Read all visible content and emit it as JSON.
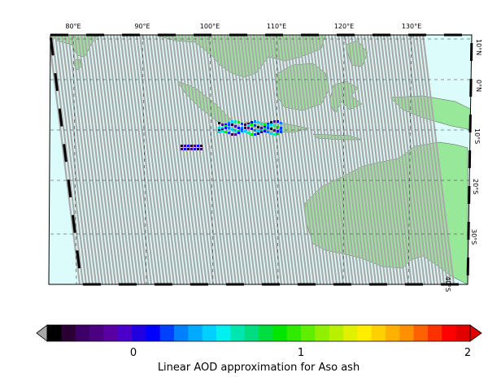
{
  "map": {
    "lon_labels": [
      "80°E",
      "90°E",
      "100°E",
      "110°E",
      "120°E",
      "130°E"
    ],
    "lat_labels": [
      "10°N",
      "0°N",
      "10°S",
      "20°S",
      "30°S",
      "40°S"
    ],
    "extent": {
      "lon": [
        76,
        138
      ],
      "lat": [
        12,
        -42
      ]
    },
    "colors": {
      "ocean": "#dcfbfb",
      "land": "#98e89a",
      "swath": "#aaaaaa",
      "grid": "#333333"
    }
  },
  "colorbar": {
    "label": "Linear AOD approximation for Aso ash",
    "ticks": [
      "0",
      "1",
      "2"
    ],
    "range": [
      -0.6,
      2
    ],
    "colors": [
      "#000000",
      "#2a0033",
      "#3d0066",
      "#4b0082",
      "#5a00a0",
      "#4a00c8",
      "#2000e0",
      "#0000ff",
      "#0040ff",
      "#0080ff",
      "#00aaff",
      "#00d0ff",
      "#00f0f0",
      "#00e6b0",
      "#00dd80",
      "#00dd40",
      "#00e600",
      "#30ea00",
      "#60ee00",
      "#90f000",
      "#b8f000",
      "#e0f000",
      "#ffee00",
      "#ffd000",
      "#ffb000",
      "#ff9000",
      "#ff6000",
      "#ff3000",
      "#ff0000",
      "#e00000"
    ]
  }
}
